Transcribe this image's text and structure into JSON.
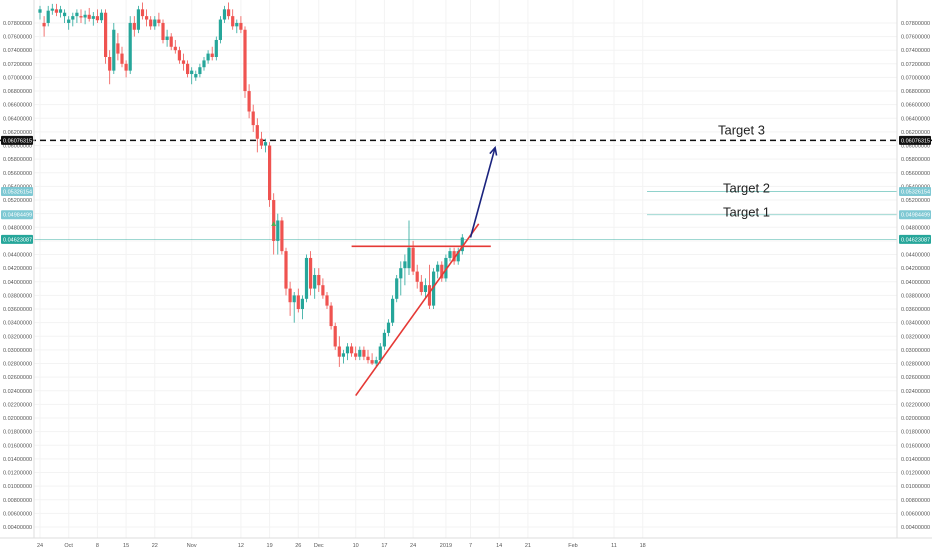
{
  "chart_data": {
    "type": "candlestick",
    "ylim": [
      0.003,
      0.08
    ],
    "y_ticks": [
      "0.07800000",
      "0.07600000",
      "0.07400000",
      "0.07200000",
      "0.07000000",
      "0.06800000",
      "0.06600000",
      "0.06400000",
      "0.06200000",
      "0.06000000",
      "0.05800000",
      "0.05600000",
      "0.05400000",
      "0.05200000",
      "0.05000000",
      "0.04800000",
      "0.04600000",
      "0.04400000",
      "0.04200000",
      "0.04000000",
      "0.03800000",
      "0.03600000",
      "0.03400000",
      "0.03200000",
      "0.03000000",
      "0.02800000",
      "0.02600000",
      "0.02400000",
      "0.02200000",
      "0.02000000",
      "0.01800000",
      "0.01600000",
      "0.01400000",
      "0.01200000",
      "0.01000000",
      "0.00800000",
      "0.00600000",
      "0.00400000"
    ],
    "x_ticks": [
      {
        "label": "24",
        "bar": 0
      },
      {
        "label": "Oct",
        "bar": 7
      },
      {
        "label": "8",
        "bar": 14
      },
      {
        "label": "15",
        "bar": 21
      },
      {
        "label": "22",
        "bar": 28
      },
      {
        "label": "Nov",
        "bar": 37
      },
      {
        "label": "12",
        "bar": 49
      },
      {
        "label": "19",
        "bar": 56
      },
      {
        "label": "26",
        "bar": 63
      },
      {
        "label": "Dec",
        "bar": 68
      },
      {
        "label": "10",
        "bar": 77
      },
      {
        "label": "17",
        "bar": 84
      },
      {
        "label": "24",
        "bar": 91
      },
      {
        "label": "2019",
        "bar": 99
      },
      {
        "label": "7",
        "bar": 105
      },
      {
        "label": "14",
        "bar": 112
      },
      {
        "label": "21",
        "bar": 119
      },
      {
        "label": "Feb",
        "bar": 130
      },
      {
        "label": "11",
        "bar": 140
      },
      {
        "label": "18",
        "bar": 147
      }
    ],
    "candles": [
      [
        0.0795,
        0.0805,
        0.0785,
        0.08
      ],
      [
        0.078,
        0.079,
        0.076,
        0.0775
      ],
      [
        0.078,
        0.0805,
        0.0775,
        0.0798
      ],
      [
        0.0798,
        0.0808,
        0.0792,
        0.0801
      ],
      [
        0.08,
        0.0808,
        0.079,
        0.0795
      ],
      [
        0.0795,
        0.0805,
        0.0788,
        0.08
      ],
      [
        0.079,
        0.08,
        0.078,
        0.0795
      ],
      [
        0.078,
        0.079,
        0.077,
        0.0785
      ],
      [
        0.0785,
        0.0795,
        0.0775,
        0.079
      ],
      [
        0.079,
        0.08,
        0.078,
        0.0795
      ],
      [
        0.079,
        0.08,
        0.078,
        0.0788
      ],
      [
        0.0788,
        0.0798,
        0.0778,
        0.0792
      ],
      [
        0.0792,
        0.0802,
        0.0782,
        0.0786
      ],
      [
        0.0786,
        0.0796,
        0.0776,
        0.079
      ],
      [
        0.079,
        0.08,
        0.078,
        0.0784
      ],
      [
        0.0784,
        0.08,
        0.078,
        0.0795
      ],
      [
        0.0795,
        0.08,
        0.072,
        0.073
      ],
      [
        0.073,
        0.074,
        0.069,
        0.071
      ],
      [
        0.071,
        0.078,
        0.0705,
        0.077
      ],
      [
        0.075,
        0.0765,
        0.0725,
        0.0735
      ],
      [
        0.0735,
        0.0745,
        0.0715,
        0.072
      ],
      [
        0.072,
        0.0725,
        0.07,
        0.071
      ],
      [
        0.071,
        0.079,
        0.0705,
        0.078
      ],
      [
        0.078,
        0.079,
        0.076,
        0.077
      ],
      [
        0.077,
        0.0805,
        0.0765,
        0.08
      ],
      [
        0.08,
        0.081,
        0.0785,
        0.079
      ],
      [
        0.079,
        0.08,
        0.0775,
        0.0785
      ],
      [
        0.0785,
        0.079,
        0.077,
        0.0775
      ],
      [
        0.0775,
        0.079,
        0.077,
        0.0785
      ],
      [
        0.0785,
        0.0795,
        0.0775,
        0.078
      ],
      [
        0.078,
        0.0785,
        0.075,
        0.0755
      ],
      [
        0.0755,
        0.077,
        0.0745,
        0.076
      ],
      [
        0.076,
        0.0765,
        0.074,
        0.0745
      ],
      [
        0.0745,
        0.0755,
        0.0735,
        0.074
      ],
      [
        0.074,
        0.0745,
        0.072,
        0.0725
      ],
      [
        0.0725,
        0.0735,
        0.071,
        0.072
      ],
      [
        0.072,
        0.0725,
        0.07,
        0.0705
      ],
      [
        0.0705,
        0.0715,
        0.069,
        0.071
      ],
      [
        0.07,
        0.071,
        0.0695,
        0.0705
      ],
      [
        0.0705,
        0.072,
        0.07,
        0.0715
      ],
      [
        0.0715,
        0.073,
        0.071,
        0.0725
      ],
      [
        0.0725,
        0.074,
        0.072,
        0.0735
      ],
      [
        0.0735,
        0.0745,
        0.0725,
        0.073
      ],
      [
        0.073,
        0.076,
        0.0725,
        0.0755
      ],
      [
        0.0755,
        0.079,
        0.075,
        0.0785
      ],
      [
        0.0785,
        0.0805,
        0.078,
        0.08
      ],
      [
        0.08,
        0.081,
        0.0785,
        0.079
      ],
      [
        0.079,
        0.08,
        0.077,
        0.0775
      ],
      [
        0.0775,
        0.0785,
        0.0765,
        0.078
      ],
      [
        0.078,
        0.079,
        0.0765,
        0.077
      ],
      [
        0.077,
        0.0775,
        0.067,
        0.068
      ],
      [
        0.068,
        0.069,
        0.064,
        0.065
      ],
      [
        0.065,
        0.066,
        0.062,
        0.063
      ],
      [
        0.063,
        0.064,
        0.059,
        0.061
      ],
      [
        0.061,
        0.062,
        0.0595,
        0.06
      ],
      [
        0.06,
        0.061,
        0.059,
        0.0605
      ],
      [
        0.06,
        0.0605,
        0.051,
        0.052
      ],
      [
        0.052,
        0.053,
        0.044,
        0.046
      ],
      [
        0.046,
        0.05,
        0.044,
        0.049
      ],
      [
        0.049,
        0.0495,
        0.044,
        0.0445
      ],
      [
        0.0445,
        0.045,
        0.038,
        0.039
      ],
      [
        0.039,
        0.04,
        0.035,
        0.037
      ],
      [
        0.037,
        0.0385,
        0.034,
        0.038
      ],
      [
        0.038,
        0.039,
        0.0355,
        0.036
      ],
      [
        0.036,
        0.038,
        0.0345,
        0.0375
      ],
      [
        0.0375,
        0.044,
        0.037,
        0.0435
      ],
      [
        0.0435,
        0.0445,
        0.038,
        0.039
      ],
      [
        0.039,
        0.042,
        0.0375,
        0.041
      ],
      [
        0.041,
        0.042,
        0.0385,
        0.0395
      ],
      [
        0.0395,
        0.0405,
        0.0375,
        0.038
      ],
      [
        0.038,
        0.0385,
        0.036,
        0.0365
      ],
      [
        0.0365,
        0.037,
        0.033,
        0.0335
      ],
      [
        0.0335,
        0.034,
        0.03,
        0.0305
      ],
      [
        0.0305,
        0.032,
        0.0275,
        0.029
      ],
      [
        0.029,
        0.03,
        0.028,
        0.0295
      ],
      [
        0.0295,
        0.031,
        0.0285,
        0.0305
      ],
      [
        0.0305,
        0.031,
        0.029,
        0.0295
      ],
      [
        0.0295,
        0.0305,
        0.0285,
        0.029
      ],
      [
        0.029,
        0.0305,
        0.0285,
        0.03
      ],
      [
        0.03,
        0.0305,
        0.0285,
        0.029
      ],
      [
        0.029,
        0.03,
        0.028,
        0.0285
      ],
      [
        0.0285,
        0.0295,
        0.0278,
        0.028
      ],
      [
        0.028,
        0.029,
        0.0275,
        0.0285
      ],
      [
        0.0285,
        0.031,
        0.028,
        0.0305
      ],
      [
        0.0305,
        0.033,
        0.03,
        0.0325
      ],
      [
        0.0325,
        0.0345,
        0.032,
        0.034
      ],
      [
        0.034,
        0.038,
        0.0335,
        0.0375
      ],
      [
        0.0375,
        0.041,
        0.037,
        0.0405
      ],
      [
        0.0405,
        0.043,
        0.038,
        0.042
      ],
      [
        0.042,
        0.044,
        0.0395,
        0.043
      ],
      [
        0.042,
        0.049,
        0.041,
        0.045
      ],
      [
        0.045,
        0.046,
        0.041,
        0.0415
      ],
      [
        0.0415,
        0.0425,
        0.039,
        0.04
      ],
      [
        0.04,
        0.041,
        0.038,
        0.0385
      ],
      [
        0.0385,
        0.0405,
        0.0375,
        0.0395
      ],
      [
        0.0395,
        0.0425,
        0.036,
        0.0365
      ],
      [
        0.0365,
        0.042,
        0.036,
        0.0415
      ],
      [
        0.0415,
        0.043,
        0.0405,
        0.0425
      ],
      [
        0.0425,
        0.043,
        0.04,
        0.0405
      ],
      [
        0.0405,
        0.044,
        0.04,
        0.0435
      ],
      [
        0.0435,
        0.045,
        0.043,
        0.0445
      ],
      [
        0.0445,
        0.045,
        0.0425,
        0.043
      ],
      [
        0.043,
        0.045,
        0.0425,
        0.0445
      ],
      [
        0.0445,
        0.047,
        0.044,
        0.0465
      ]
    ],
    "signal_marker": {
      "bar": 57,
      "value": 0.0485
    },
    "lines": {
      "resistance": {
        "y": 0.0452,
        "from_bar": 76,
        "to_bar": 108
      },
      "support": {
        "points": [
          [
            77,
            0.0233
          ],
          [
            107,
            0.0485
          ]
        ]
      },
      "projection": {
        "points": [
          [
            105,
            0.0465
          ],
          [
            111,
            0.0597
          ]
        ]
      },
      "target3": {
        "y": 0.06076315
      },
      "target2": {
        "y": 0.05326154
      },
      "target1": {
        "y": 0.04984499
      },
      "current": {
        "y": 0.04623087
      }
    },
    "annotations": [
      {
        "text": "Target 3",
        "value": 0.0616
      },
      {
        "text": "Target 2",
        "value": 0.0531
      },
      {
        "text": "Target 1",
        "value": 0.0496
      }
    ],
    "price_badges": [
      {
        "text": "0.06076315",
        "value": 0.06076315,
        "color": "#111111"
      },
      {
        "text": "0.05326154",
        "value": 0.05326154,
        "color": "#7ec8d3"
      },
      {
        "text": "0.04984499",
        "value": 0.04984499,
        "color": "#7ec8d3"
      },
      {
        "text": "0.04623087",
        "value": 0.04623087,
        "color": "#26a69a"
      }
    ],
    "colors": {
      "up": "#26a69a",
      "down": "#ef5350",
      "resistance": "#e53935",
      "support": "#e53935",
      "projection": "#1a237e",
      "target": "#80cbc4"
    }
  }
}
